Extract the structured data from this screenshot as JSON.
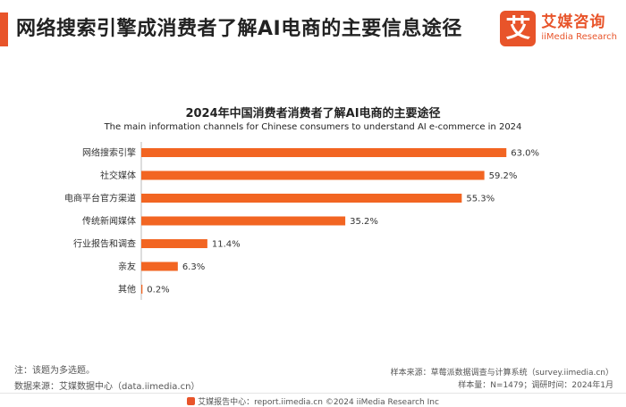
{
  "header": {
    "title": "网络搜索引擎成消费者了解AI电商的主要信息途径",
    "logo_mark": "艾",
    "logo_cn": "艾媒咨询",
    "logo_en": "iiMedia Research"
  },
  "chart_data": {
    "type": "bar",
    "orientation": "horizontal",
    "title": "2024年中国消费者消费者了解AI电商的主要途径",
    "subtitle": "The main information channels for Chinese consumers to understand AI e-commerce in 2024",
    "categories": [
      "网络搜索引擎",
      "社交媒体",
      "电商平台官方渠道",
      "传统新闻媒体",
      "行业报告和调查",
      "亲友",
      "其他"
    ],
    "values": [
      63.0,
      59.2,
      55.3,
      35.2,
      11.4,
      6.3,
      0.2
    ],
    "value_labels": [
      "63.0%",
      "59.2%",
      "55.3%",
      "35.2%",
      "11.4%",
      "6.3%",
      "0.2%"
    ],
    "xlim": [
      0,
      100
    ],
    "color": "#f26522",
    "grid": false,
    "legend": "none"
  },
  "notes": {
    "note": "注：该题为多选题。",
    "source": "数据来源：艾媒数据中心（data.iimedia.cn）",
    "sample": "样本来源：草莓派数据调查与计算系统（survey.iimedia.cn）",
    "sample_info": "样本量：N=1479；调研时间：2024年1月"
  },
  "footer": {
    "text": "艾媒报告中心：report.iimedia.cn   ©2024  iiMedia Research  Inc"
  }
}
